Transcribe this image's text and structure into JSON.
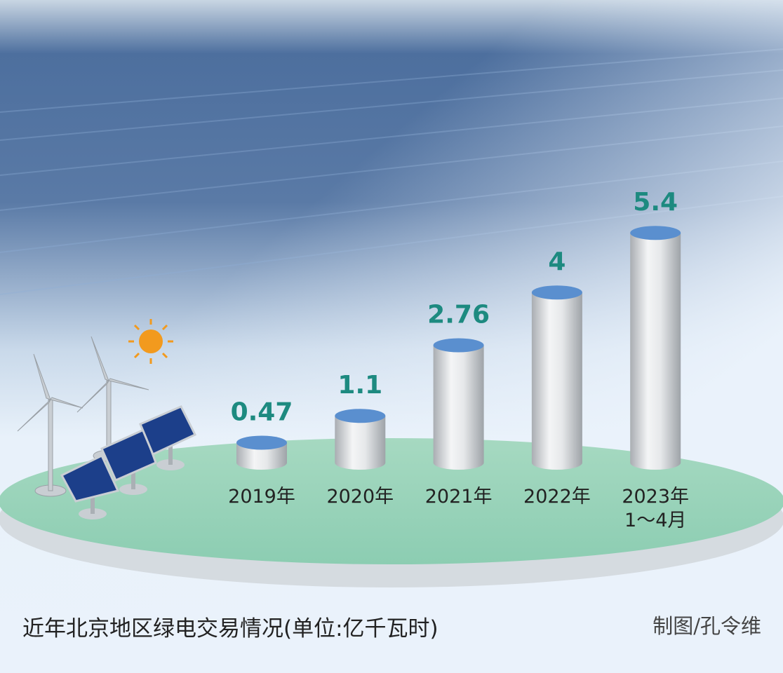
{
  "chart_data": {
    "type": "bar",
    "title": "近年北京地区绿电交易情况(单位:亿千瓦时)",
    "credit": "制图/孔令维",
    "categories": [
      "2019年",
      "2020年",
      "2021年",
      "2022年",
      "2023年\n1～4月"
    ],
    "values": [
      0.47,
      1.1,
      2.76,
      4,
      5.4
    ],
    "color": "#5a8fcf"
  }
}
